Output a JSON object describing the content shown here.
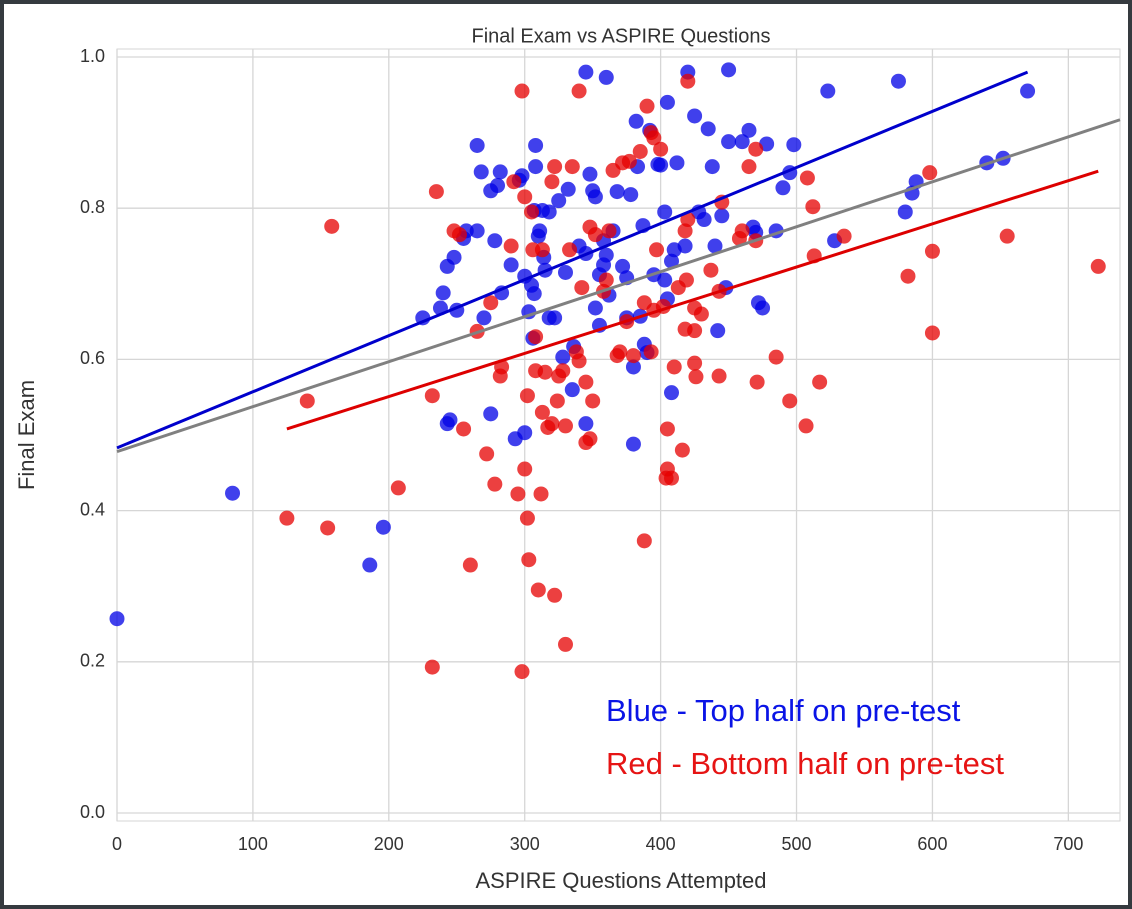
{
  "chart_data": {
    "type": "scatter",
    "title": "Final Exam vs ASPIRE Questions",
    "xlabel": "ASPIRE Questions Attempted",
    "ylabel": "Final Exam",
    "xlim": [
      0,
      738
    ],
    "ylim": [
      0,
      1.0
    ],
    "xticks": [
      0,
      100,
      200,
      300,
      400,
      500,
      600,
      700
    ],
    "yticks": [
      {
        "value": 0,
        "label": "0.0"
      },
      {
        "value": 0.2,
        "label": "0.2"
      },
      {
        "value": 0.4,
        "label": "0.4"
      },
      {
        "value": 0.6,
        "label": "0.6"
      },
      {
        "value": 0.8,
        "label": "0.8"
      },
      {
        "value": 1.0,
        "label": "1.0"
      }
    ],
    "grid": true,
    "annotations": [
      {
        "text": "Blue - Top half on pre-test",
        "color": "#0a14e6"
      },
      {
        "text": "Red - Bottom half on pre-test",
        "color": "#e61414"
      }
    ],
    "series": [
      {
        "color": "#0000e6",
        "x": [
          0,
          85,
          196,
          186,
          225,
          238,
          240,
          243,
          248,
          245,
          243,
          250,
          255,
          257,
          265,
          265,
          268,
          270,
          275,
          280,
          282,
          278,
          275,
          283,
          290,
          293,
          296,
          298,
          300,
          300,
          303,
          305,
          306,
          307,
          307,
          308,
          308,
          310,
          311,
          313,
          314,
          315,
          318,
          318,
          322,
          325,
          328,
          330,
          332,
          335,
          336,
          340,
          345,
          345,
          345,
          348,
          350,
          352,
          352,
          355,
          355,
          358,
          358,
          360,
          360,
          362,
          365,
          368,
          372,
          375,
          375,
          378,
          380,
          380,
          382,
          383,
          385,
          387,
          388,
          390,
          392,
          395,
          398,
          400,
          403,
          403,
          405,
          405,
          408,
          408,
          410,
          412,
          418,
          420,
          425,
          428,
          432,
          435,
          438,
          440,
          442,
          445,
          448,
          450,
          450,
          460,
          465,
          468,
          470,
          472,
          475,
          478,
          485,
          490,
          495,
          498,
          523,
          528,
          575,
          580,
          585,
          588,
          640,
          652,
          670
        ],
        "y": [
          0.257,
          0.423,
          0.378,
          0.328,
          0.655,
          0.668,
          0.688,
          0.723,
          0.735,
          0.52,
          0.515,
          0.665,
          0.76,
          0.77,
          0.77,
          0.883,
          0.848,
          0.655,
          0.823,
          0.83,
          0.848,
          0.757,
          0.528,
          0.688,
          0.725,
          0.495,
          0.837,
          0.843,
          0.503,
          0.71,
          0.663,
          0.698,
          0.628,
          0.687,
          0.797,
          0.883,
          0.855,
          0.763,
          0.77,
          0.797,
          0.735,
          0.718,
          0.795,
          0.655,
          0.655,
          0.81,
          0.603,
          0.715,
          0.825,
          0.56,
          0.617,
          0.75,
          0.515,
          0.74,
          0.98,
          0.845,
          0.823,
          0.815,
          0.668,
          0.645,
          0.712,
          0.725,
          0.757,
          0.738,
          0.973,
          0.685,
          0.77,
          0.822,
          0.723,
          0.655,
          0.708,
          0.818,
          0.488,
          0.59,
          0.915,
          0.855,
          0.657,
          0.777,
          0.62,
          0.609,
          0.903,
          0.712,
          0.858,
          0.857,
          0.795,
          0.705,
          0.68,
          0.94,
          0.556,
          0.73,
          0.745,
          0.86,
          0.75,
          0.98,
          0.922,
          0.795,
          0.785,
          0.905,
          0.855,
          0.75,
          0.638,
          0.79,
          0.695,
          0.888,
          0.983,
          0.888,
          0.903,
          0.775,
          0.768,
          0.675,
          0.668,
          0.885,
          0.77,
          0.827,
          0.847,
          0.884,
          0.955,
          0.757,
          0.968,
          0.795,
          0.82,
          0.835,
          0.86,
          0.866,
          0.955
        ]
      },
      {
        "color": "#e60000",
        "x": [
          125,
          140,
          155,
          158,
          207,
          232,
          232,
          235,
          248,
          252,
          255,
          260,
          265,
          272,
          275,
          278,
          282,
          283,
          290,
          292,
          295,
          298,
          298,
          300,
          300,
          302,
          302,
          303,
          305,
          306,
          308,
          308,
          310,
          312,
          313,
          313,
          315,
          317,
          320,
          320,
          322,
          322,
          324,
          325,
          328,
          330,
          330,
          333,
          335,
          338,
          340,
          340,
          342,
          345,
          345,
          348,
          348,
          350,
          352,
          358,
          360,
          362,
          365,
          368,
          370,
          372,
          375,
          377,
          380,
          385,
          388,
          388,
          390,
          393,
          393,
          395,
          395,
          397,
          400,
          402,
          404,
          405,
          405,
          408,
          410,
          413,
          416,
          418,
          418,
          419,
          420,
          420,
          425,
          425,
          425,
          426,
          430,
          437,
          443,
          443,
          445,
          458,
          460,
          465,
          470,
          470,
          471,
          485,
          495,
          507,
          508,
          512,
          513,
          517,
          535,
          582,
          598,
          600,
          600,
          655,
          722
        ],
        "y": [
          0.39,
          0.545,
          0.377,
          0.776,
          0.43,
          0.193,
          0.552,
          0.822,
          0.77,
          0.765,
          0.508,
          0.328,
          0.637,
          0.475,
          0.675,
          0.435,
          0.578,
          0.59,
          0.75,
          0.835,
          0.422,
          0.187,
          0.955,
          0.815,
          0.455,
          0.39,
          0.552,
          0.335,
          0.795,
          0.745,
          0.63,
          0.585,
          0.295,
          0.422,
          0.53,
          0.745,
          0.583,
          0.51,
          0.515,
          0.835,
          0.288,
          0.855,
          0.545,
          0.578,
          0.585,
          0.512,
          0.223,
          0.745,
          0.855,
          0.61,
          0.598,
          0.955,
          0.695,
          0.57,
          0.49,
          0.495,
          0.775,
          0.545,
          0.765,
          0.69,
          0.705,
          0.77,
          0.85,
          0.605,
          0.61,
          0.86,
          0.65,
          0.862,
          0.605,
          0.875,
          0.675,
          0.36,
          0.935,
          0.9,
          0.61,
          0.893,
          0.665,
          0.745,
          0.878,
          0.67,
          0.443,
          0.508,
          0.455,
          0.443,
          0.59,
          0.695,
          0.48,
          0.77,
          0.64,
          0.705,
          0.968,
          0.785,
          0.638,
          0.668,
          0.595,
          0.577,
          0.66,
          0.718,
          0.578,
          0.69,
          0.808,
          0.76,
          0.77,
          0.855,
          0.878,
          0.757,
          0.57,
          0.603,
          0.545,
          0.512,
          0.84,
          0.802,
          0.737,
          0.57,
          0.763,
          0.71,
          0.847,
          0.743,
          0.635,
          0.763,
          0.723
        ]
      }
    ],
    "trend_lines": [
      {
        "color": "#0000cc",
        "x": [
          0,
          670
        ],
        "y": [
          0.483,
          0.98
        ]
      },
      {
        "color": "#808080",
        "x": [
          0,
          738
        ],
        "y": [
          0.478,
          0.917
        ]
      },
      {
        "color": "#dd0000",
        "x": [
          125,
          722
        ],
        "y": [
          0.508,
          0.849
        ]
      }
    ]
  }
}
